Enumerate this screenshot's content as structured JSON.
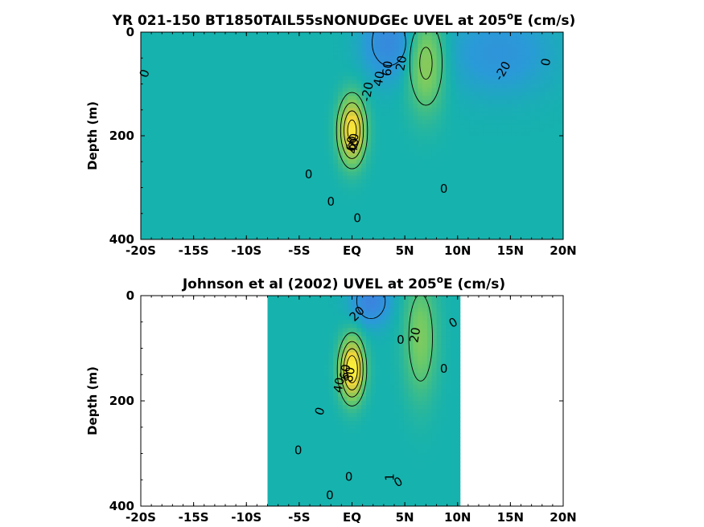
{
  "colors": {
    "background": "#ffffff",
    "blue": "#3f7fe0",
    "teal": "#16b2ae",
    "green": "#6fca66",
    "yellow": "#f2d63a",
    "brightyellow": "#fbf53a"
  },
  "chart_data": [
    {
      "type": "heatmap",
      "title_main": "YR 021-150 BT1850TAIL55sNONUDGEc UVEL at 205",
      "title_sup": "o",
      "title_tail": "E (cm/s)",
      "ylabel": "Depth (m)",
      "xlim": [
        -20,
        20
      ],
      "ylim": [
        0,
        400
      ],
      "x_ticks": [
        -20,
        -15,
        -10,
        -5,
        0,
        5,
        10,
        15,
        20
      ],
      "x_tick_labels": [
        "-20S",
        "-15S",
        "-10S",
        "-5S",
        "EQ",
        "5N",
        "10N",
        "15N",
        "20N"
      ],
      "y_ticks": [
        0,
        200,
        400
      ],
      "y_tick_labels": [
        "0",
        "200",
        "400"
      ],
      "data_extent": [
        -20,
        20
      ],
      "features": [
        {
          "name": "equatorial undercurrent",
          "lat": 0,
          "depth": 190,
          "peak": 90,
          "half_width": 1.2,
          "half_depth": 60
        },
        {
          "name": "NECC",
          "lat": 7,
          "depth": 60,
          "peak": 45,
          "half_width": 1.7,
          "half_depth": 90
        },
        {
          "name": "SEC north",
          "lat": 3.5,
          "depth": 20,
          "peak": -30,
          "half_width": 2.5,
          "half_depth": 70
        },
        {
          "name": "NEC",
          "lat": 14,
          "depth": 40,
          "peak": -20,
          "half_width": 5,
          "half_depth": 80
        }
      ],
      "contour_labels": [
        {
          "text": "0",
          "lat": -19.6,
          "depth": 80,
          "angle": -70
        },
        {
          "text": "0",
          "lat": -4.1,
          "depth": 275,
          "angle": 0
        },
        {
          "text": "0",
          "lat": -2,
          "depth": 328,
          "angle": 0
        },
        {
          "text": "0",
          "lat": 0.5,
          "depth": 360,
          "angle": 0
        },
        {
          "text": "0",
          "lat": 8.7,
          "depth": 303,
          "angle": 0
        },
        {
          "text": "0",
          "lat": 18.4,
          "depth": 58,
          "angle": -80
        },
        {
          "text": "-20",
          "lat": 1.5,
          "depth": 115,
          "angle": -80
        },
        {
          "text": "-20",
          "lat": 14.3,
          "depth": 75,
          "angle": -60
        },
        {
          "text": "20",
          "lat": 0.2,
          "depth": 210,
          "angle": -85
        },
        {
          "text": "40",
          "lat": 2.6,
          "depth": 90,
          "angle": -80
        },
        {
          "text": "40",
          "lat": 0.2,
          "depth": 220,
          "angle": -80
        },
        {
          "text": "60",
          "lat": 0,
          "depth": 215,
          "angle": -85
        },
        {
          "text": "60",
          "lat": 3.4,
          "depth": 70,
          "angle": -85
        },
        {
          "text": "20",
          "lat": 4.7,
          "depth": 60,
          "angle": -80
        }
      ]
    },
    {
      "type": "heatmap",
      "title_main": "Johnson et al (2002) UVEL at 205",
      "title_sup": "o",
      "title_tail": "E (cm/s)",
      "ylabel": "Depth (m)",
      "xlim": [
        -20,
        20
      ],
      "ylim": [
        0,
        400
      ],
      "x_ticks": [
        -20,
        -15,
        -10,
        -5,
        0,
        5,
        10,
        15,
        20
      ],
      "x_tick_labels": [
        "-20S",
        "-15S",
        "-10S",
        "-5S",
        "EQ",
        "5N",
        "10N",
        "15N",
        "20N"
      ],
      "y_ticks": [
        0,
        200,
        400
      ],
      "y_tick_labels": [
        "0",
        "200",
        "400"
      ],
      "data_extent": [
        -8,
        10
      ],
      "features": [
        {
          "name": "equatorial undercurrent",
          "lat": 0,
          "depth": 140,
          "peak": 100,
          "half_width": 1.1,
          "half_depth": 55
        },
        {
          "name": "NECC",
          "lat": 6.5,
          "depth": 80,
          "peak": 35,
          "half_width": 1.5,
          "half_depth": 110
        },
        {
          "name": "SEC north",
          "lat": 1.8,
          "depth": 10,
          "peak": -35,
          "half_width": 1.8,
          "half_depth": 45
        }
      ],
      "contour_labels": [
        {
          "text": "0",
          "lat": -5.1,
          "depth": 295,
          "angle": 0
        },
        {
          "text": "0",
          "lat": -3,
          "depth": 220,
          "angle": -70
        },
        {
          "text": "0",
          "lat": -0.3,
          "depth": 345,
          "angle": 0
        },
        {
          "text": "0",
          "lat": -2.1,
          "depth": 380,
          "angle": 0
        },
        {
          "text": "0",
          "lat": 4.4,
          "depth": 355,
          "angle": -30
        },
        {
          "text": "0",
          "lat": 4.6,
          "depth": 85,
          "angle": 0
        },
        {
          "text": "0",
          "lat": 8.7,
          "depth": 140,
          "angle": 0
        },
        {
          "text": "0",
          "lat": 9.6,
          "depth": 52,
          "angle": -30
        },
        {
          "text": "20",
          "lat": 0.5,
          "depth": 35,
          "angle": -45
        },
        {
          "text": "20",
          "lat": 6.0,
          "depth": 75,
          "angle": -80
        },
        {
          "text": "40",
          "lat": -1.2,
          "depth": 170,
          "angle": -80
        },
        {
          "text": "60",
          "lat": -0.6,
          "depth": 145,
          "angle": -80
        },
        {
          "text": "80",
          "lat": -0.2,
          "depth": 150,
          "angle": -80
        },
        {
          "text": "1",
          "lat": 3.6,
          "depth": 345,
          "angle": -90
        }
      ]
    }
  ]
}
